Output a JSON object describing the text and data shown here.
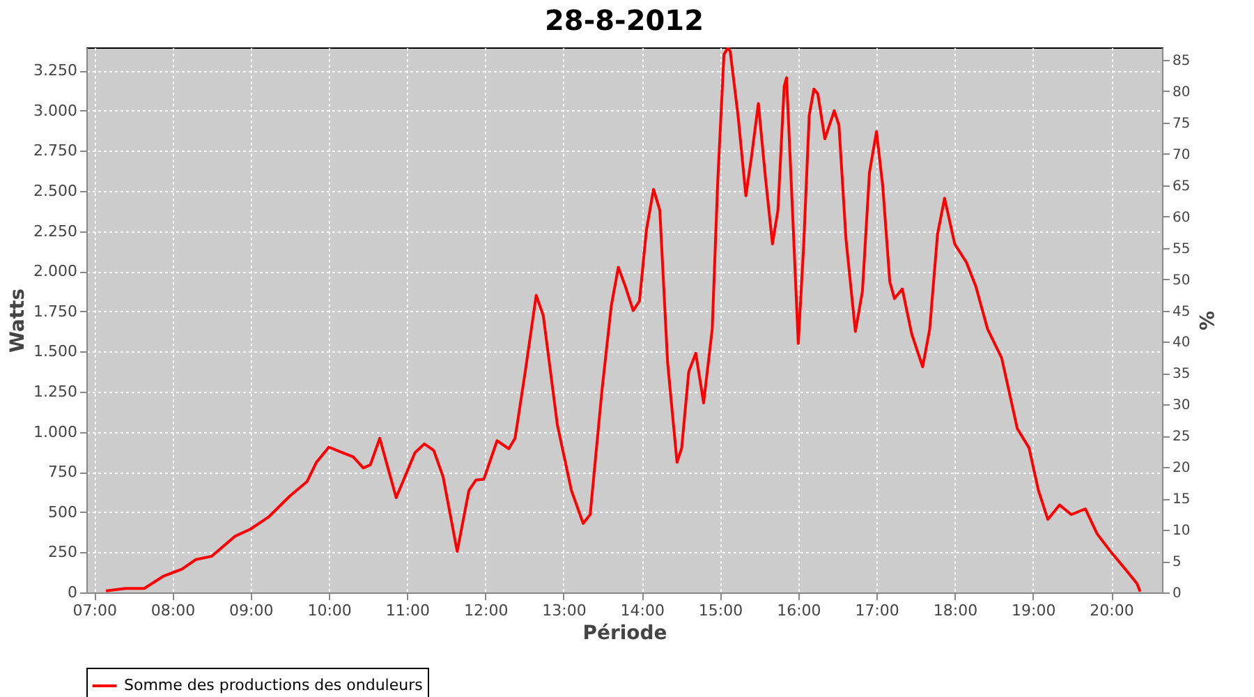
{
  "chart_data": {
    "type": "line",
    "title": "28-8-2012",
    "xlabel": "Période",
    "ylabel": "Watts",
    "y2label": "%",
    "x": [
      7.15,
      7.4,
      7.64,
      7.88,
      8.12,
      8.3,
      8.5,
      8.8,
      9.0,
      9.23,
      9.5,
      9.72,
      9.84,
      10.0,
      10.2,
      10.31,
      10.44,
      10.53,
      10.65,
      10.86,
      11.1,
      11.22,
      11.34,
      11.46,
      11.64,
      11.79,
      11.88,
      11.98,
      12.15,
      12.3,
      12.38,
      12.51,
      12.65,
      12.74,
      12.92,
      13.1,
      13.25,
      13.34,
      13.49,
      13.61,
      13.7,
      13.79,
      13.89,
      13.97,
      14.06,
      14.15,
      14.23,
      14.33,
      14.45,
      14.51,
      14.6,
      14.69,
      14.79,
      14.9,
      14.97,
      15.05,
      15.1,
      15.13,
      15.23,
      15.33,
      15.4,
      15.49,
      15.58,
      15.67,
      15.74,
      15.82,
      15.85,
      15.91,
      16.0,
      16.07,
      16.14,
      16.2,
      16.25,
      16.34,
      16.46,
      16.52,
      16.61,
      16.73,
      16.82,
      16.91,
      17.0,
      17.08,
      17.17,
      17.23,
      17.33,
      17.45,
      17.59,
      17.68,
      17.78,
      17.87,
      18.0,
      18.15,
      18.27,
      18.42,
      18.6,
      18.8,
      18.95,
      19.07,
      19.19,
      19.34,
      19.49,
      19.67,
      19.82,
      20.0,
      20.18,
      20.33,
      20.37
    ],
    "series": [
      {
        "name": "Somme des productions des onduleurs",
        "color": "#ff0000",
        "values": [
          10,
          25,
          25,
          100,
          145,
          205,
          225,
          350,
          395,
          470,
          600,
          690,
          810,
          905,
          865,
          845,
          775,
          795,
          960,
          590,
          870,
          925,
          885,
          720,
          255,
          635,
          700,
          705,
          945,
          895,
          960,
          1375,
          1850,
          1725,
          1045,
          635,
          430,
          485,
          1255,
          1785,
          2025,
          1905,
          1755,
          1815,
          2260,
          2510,
          2380,
          1430,
          810,
          900,
          1375,
          1490,
          1180,
          1640,
          2555,
          3350,
          3390,
          3370,
          2970,
          2470,
          2705,
          3045,
          2585,
          2170,
          2380,
          3150,
          3205,
          2555,
          1550,
          2170,
          2970,
          3135,
          3105,
          2825,
          3000,
          2910,
          2200,
          1625,
          1875,
          2615,
          2870,
          2530,
          1935,
          1830,
          1890,
          1610,
          1405,
          1640,
          2230,
          2455,
          2170,
          2055,
          1905,
          1640,
          1460,
          1020,
          900,
          635,
          455,
          545,
          485,
          520,
          365,
          250,
          145,
          55,
          5
        ]
      }
    ],
    "xlim": [
      6.9,
      20.65
    ],
    "xticks": [
      {
        "value": 7,
        "label": "07:00"
      },
      {
        "value": 8,
        "label": "08:00"
      },
      {
        "value": 9,
        "label": "09:00"
      },
      {
        "value": 10,
        "label": "10:00"
      },
      {
        "value": 11,
        "label": "11:00"
      },
      {
        "value": 12,
        "label": "12:00"
      },
      {
        "value": 13,
        "label": "13:00"
      },
      {
        "value": 14,
        "label": "14:00"
      },
      {
        "value": 15,
        "label": "15:00"
      },
      {
        "value": 16,
        "label": "16:00"
      },
      {
        "value": 17,
        "label": "17:00"
      },
      {
        "value": 18,
        "label": "18:00"
      },
      {
        "value": 19,
        "label": "19:00"
      },
      {
        "value": 20,
        "label": "20:00"
      }
    ],
    "ylim": [
      0,
      3394
    ],
    "yticks": [
      0,
      250,
      500,
      750,
      {
        "value": 1000,
        "label": "1.000"
      },
      {
        "value": 1250,
        "label": "1.250"
      },
      {
        "value": 1500,
        "label": "1.500"
      },
      {
        "value": 1750,
        "label": "1.750"
      },
      {
        "value": 2000,
        "label": "2.000"
      },
      {
        "value": 2250,
        "label": "2.250"
      },
      {
        "value": 2500,
        "label": "2.500"
      },
      {
        "value": 2750,
        "label": "2.750"
      },
      {
        "value": 3000,
        "label": "3.000"
      },
      {
        "value": 3250,
        "label": "3.250"
      }
    ],
    "y2lim": [
      0,
      87
    ],
    "y2ticks": [
      0,
      5,
      10,
      15,
      20,
      25,
      30,
      35,
      40,
      45,
      50,
      55,
      60,
      65,
      70,
      75,
      80,
      85
    ],
    "grid": true,
    "legend": "bottom",
    "line_style": "solid",
    "marker": "none"
  }
}
